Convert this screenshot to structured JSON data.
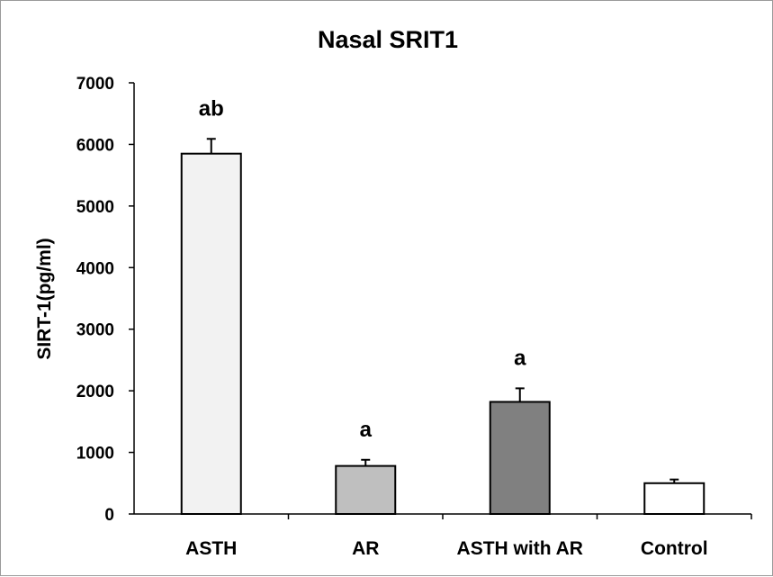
{
  "chart_data": {
    "type": "bar",
    "title": "Nasal SRIT1",
    "xlabel": "",
    "ylabel": "SIRT-1(pg/ml)",
    "categories": [
      "ASTH",
      "AR",
      "ASTH with AR",
      "Control"
    ],
    "values": [
      5850,
      780,
      1820,
      500
    ],
    "errors": [
      240,
      100,
      220,
      60
    ],
    "annotations": [
      "ab",
      "a",
      "a",
      ""
    ],
    "bar_colors": [
      "#f2f2f2",
      "#bfbfbf",
      "#808080",
      "#ffffff"
    ],
    "ylim": [
      0,
      7000
    ],
    "yticks": [
      0,
      1000,
      2000,
      3000,
      4000,
      5000,
      6000,
      7000
    ],
    "grid": false,
    "legend": "none"
  }
}
